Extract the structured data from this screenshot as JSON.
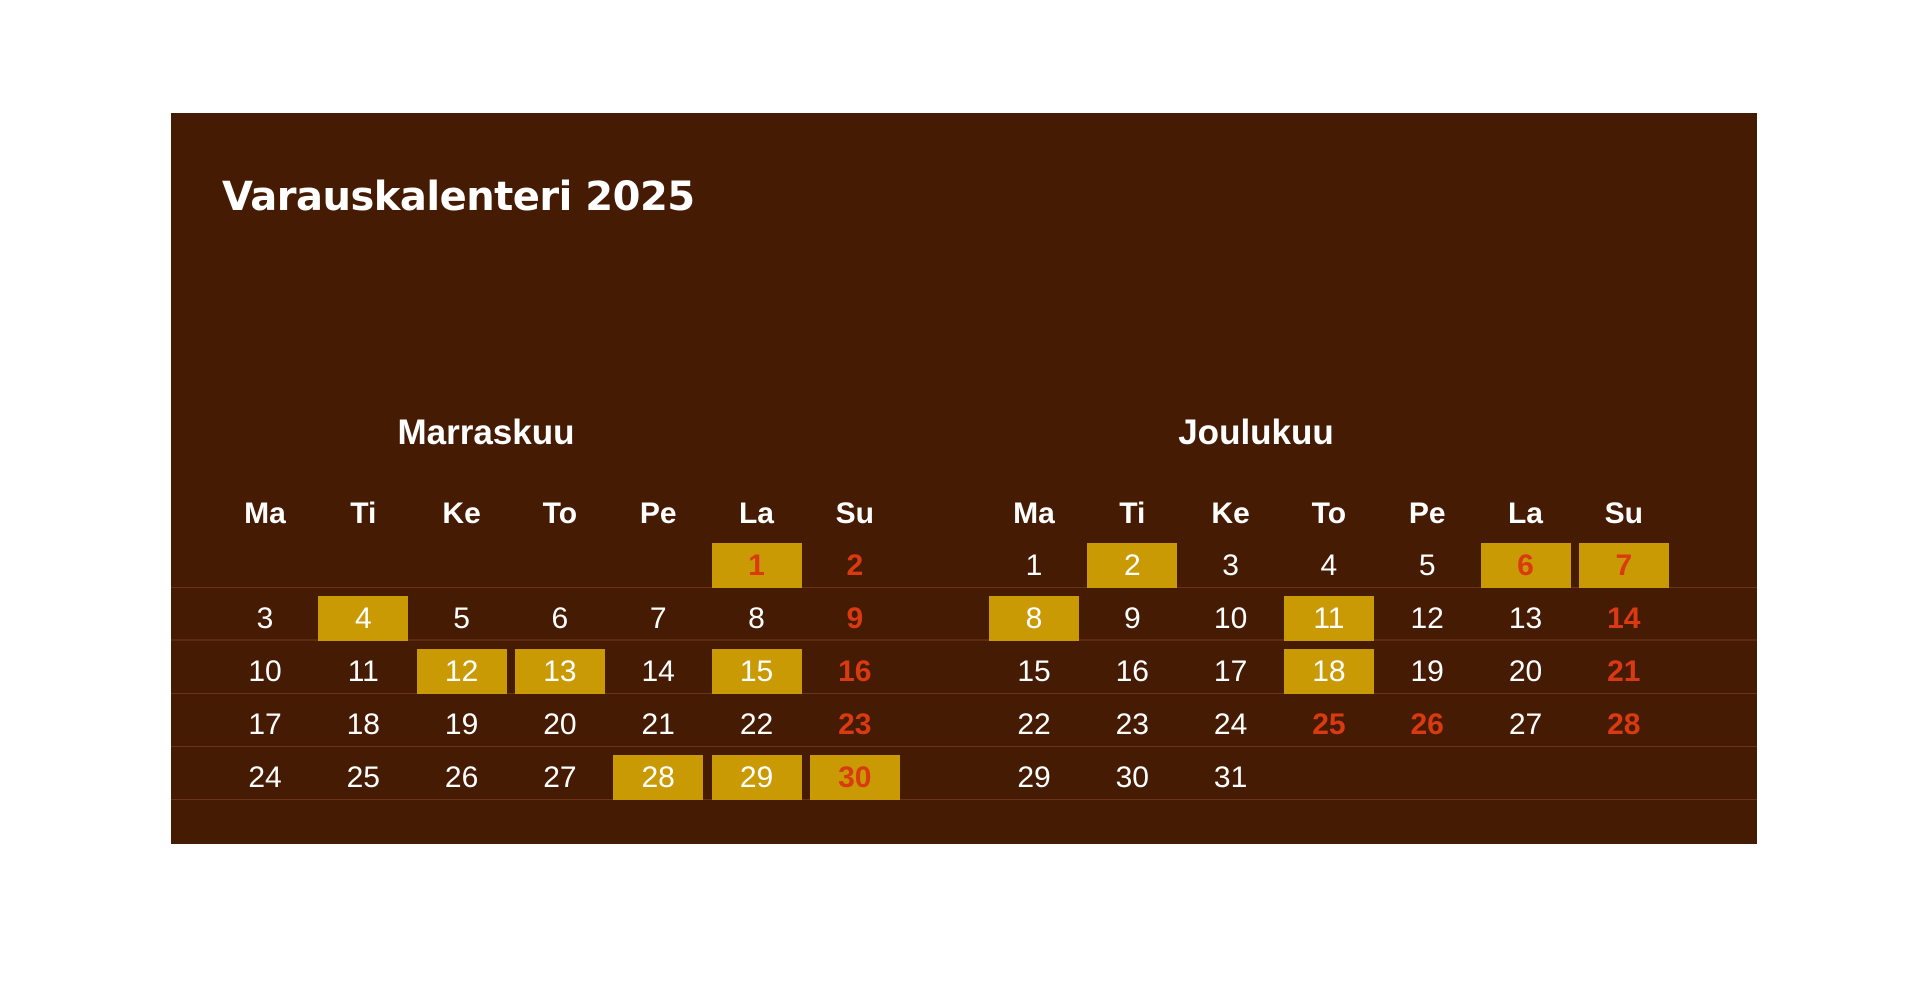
{
  "calendar": {
    "title": "Varauskalenteri 2025",
    "weekdays": [
      "Ma",
      "Ti",
      "Ke",
      "To",
      "Pe",
      "La",
      "Su"
    ],
    "months": [
      {
        "name": "Marraskuu",
        "weeks": [
          [
            null,
            null,
            null,
            null,
            null,
            1,
            2
          ],
          [
            3,
            4,
            5,
            6,
            7,
            8,
            9
          ],
          [
            10,
            11,
            12,
            13,
            14,
            15,
            16
          ],
          [
            17,
            18,
            19,
            20,
            21,
            22,
            23
          ],
          [
            24,
            25,
            26,
            27,
            28,
            29,
            30
          ]
        ],
        "booked_days": [
          1,
          4,
          12,
          13,
          15,
          28,
          29,
          30
        ],
        "red_days": [
          1,
          2,
          9,
          16,
          23,
          30
        ]
      },
      {
        "name": "Joulukuu",
        "weeks": [
          [
            1,
            2,
            3,
            4,
            5,
            6,
            7
          ],
          [
            8,
            9,
            10,
            11,
            12,
            13,
            14
          ],
          [
            15,
            16,
            17,
            18,
            19,
            20,
            21
          ],
          [
            22,
            23,
            24,
            25,
            26,
            27,
            28
          ],
          [
            29,
            30,
            31,
            null,
            null,
            null,
            null
          ]
        ],
        "booked_days": [
          2,
          6,
          7,
          8,
          11,
          18
        ],
        "red_days": [
          6,
          7,
          14,
          21,
          25,
          26,
          28
        ]
      }
    ],
    "colors": {
      "background": "#461b03",
      "booked": "#c99a04",
      "red_day_text": "#d93a10",
      "text": "#ffffff"
    }
  }
}
